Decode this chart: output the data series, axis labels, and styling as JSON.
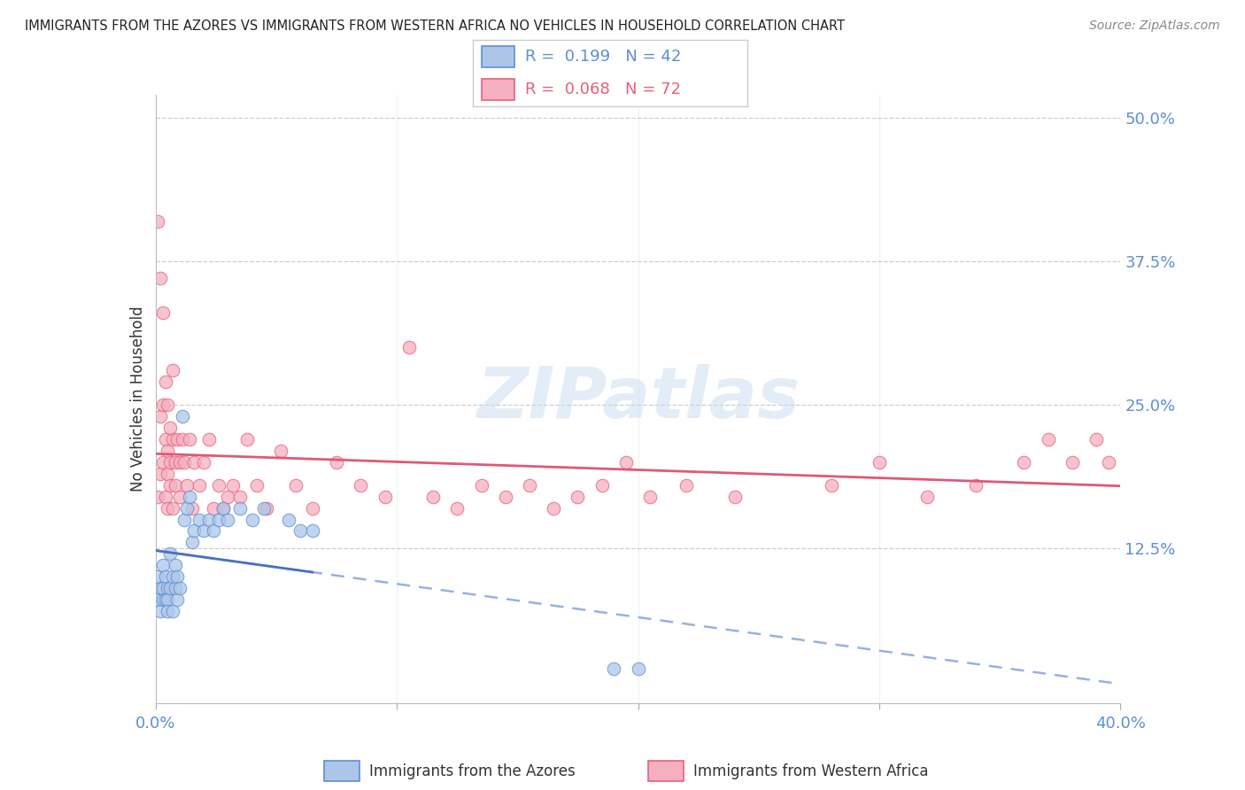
{
  "title": "IMMIGRANTS FROM THE AZORES VS IMMIGRANTS FROM WESTERN AFRICA NO VEHICLES IN HOUSEHOLD CORRELATION CHART",
  "source": "Source: ZipAtlas.com",
  "ylabel": "No Vehicles in Household",
  "ytick_labels": [
    "12.5%",
    "25.0%",
    "37.5%",
    "50.0%"
  ],
  "ytick_values": [
    0.125,
    0.25,
    0.375,
    0.5
  ],
  "xlim": [
    0.0,
    0.4
  ],
  "ylim": [
    -0.01,
    0.52
  ],
  "legend_R_azores": "0.199",
  "legend_N_azores": "42",
  "legend_R_africa": "0.068",
  "legend_N_africa": "72",
  "color_azores_fill": "#adc6e8",
  "color_africa_fill": "#f4afc0",
  "color_azores_edge": "#5b8fd4",
  "color_africa_edge": "#e8607a",
  "color_azores_trend": "#4472c4",
  "color_africa_trend": "#e05878",
  "color_axis_blue": "#5b8fd4",
  "color_title": "#222222",
  "color_source": "#888888",
  "watermark_text": "ZIPatlas",
  "marker_size": 110,
  "xtick_minor": [
    0.1,
    0.2,
    0.3
  ],
  "azores_x": [
    0.001,
    0.001,
    0.002,
    0.002,
    0.003,
    0.003,
    0.003,
    0.004,
    0.004,
    0.005,
    0.005,
    0.005,
    0.006,
    0.006,
    0.007,
    0.007,
    0.008,
    0.008,
    0.009,
    0.009,
    0.01,
    0.011,
    0.012,
    0.013,
    0.014,
    0.015,
    0.016,
    0.018,
    0.02,
    0.022,
    0.024,
    0.026,
    0.028,
    0.03,
    0.035,
    0.04,
    0.045,
    0.055,
    0.06,
    0.065,
    0.19,
    0.2
  ],
  "azores_y": [
    0.08,
    0.1,
    0.09,
    0.07,
    0.11,
    0.08,
    0.09,
    0.1,
    0.08,
    0.09,
    0.08,
    0.07,
    0.12,
    0.09,
    0.1,
    0.07,
    0.09,
    0.11,
    0.08,
    0.1,
    0.09,
    0.24,
    0.15,
    0.16,
    0.17,
    0.13,
    0.14,
    0.15,
    0.14,
    0.15,
    0.14,
    0.15,
    0.16,
    0.15,
    0.16,
    0.15,
    0.16,
    0.15,
    0.14,
    0.14,
    0.02,
    0.02
  ],
  "africa_x": [
    0.001,
    0.001,
    0.002,
    0.002,
    0.003,
    0.003,
    0.004,
    0.004,
    0.005,
    0.005,
    0.005,
    0.006,
    0.006,
    0.007,
    0.007,
    0.008,
    0.008,
    0.009,
    0.01,
    0.01,
    0.011,
    0.012,
    0.013,
    0.014,
    0.015,
    0.016,
    0.018,
    0.02,
    0.022,
    0.024,
    0.026,
    0.028,
    0.03,
    0.032,
    0.035,
    0.038,
    0.042,
    0.046,
    0.052,
    0.058,
    0.065,
    0.075,
    0.085,
    0.095,
    0.105,
    0.115,
    0.125,
    0.135,
    0.145,
    0.155,
    0.165,
    0.175,
    0.185,
    0.195,
    0.205,
    0.22,
    0.24,
    0.28,
    0.3,
    0.32,
    0.34,
    0.36,
    0.37,
    0.38,
    0.39,
    0.395,
    0.002,
    0.003,
    0.004,
    0.005,
    0.006,
    0.007
  ],
  "africa_y": [
    0.41,
    0.17,
    0.24,
    0.19,
    0.25,
    0.2,
    0.22,
    0.17,
    0.19,
    0.16,
    0.21,
    0.18,
    0.2,
    0.22,
    0.16,
    0.18,
    0.2,
    0.22,
    0.17,
    0.2,
    0.22,
    0.2,
    0.18,
    0.22,
    0.16,
    0.2,
    0.18,
    0.2,
    0.22,
    0.16,
    0.18,
    0.16,
    0.17,
    0.18,
    0.17,
    0.22,
    0.18,
    0.16,
    0.21,
    0.18,
    0.16,
    0.2,
    0.18,
    0.17,
    0.3,
    0.17,
    0.16,
    0.18,
    0.17,
    0.18,
    0.16,
    0.17,
    0.18,
    0.2,
    0.17,
    0.18,
    0.17,
    0.18,
    0.2,
    0.17,
    0.18,
    0.2,
    0.22,
    0.2,
    0.22,
    0.2,
    0.36,
    0.33,
    0.27,
    0.25,
    0.23,
    0.28
  ]
}
